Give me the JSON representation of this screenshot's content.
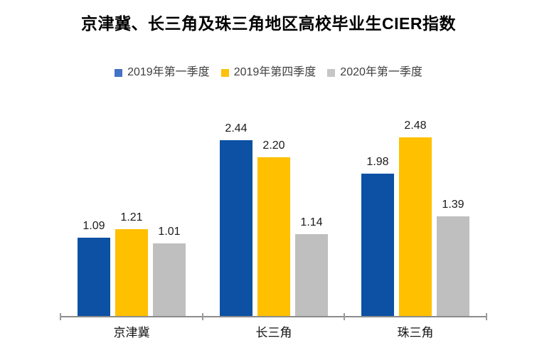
{
  "title": "京津冀、长三角及珠三角地区高校毕业生CIER指数",
  "colors": {
    "background": "#ffffff",
    "title_text": "#000000",
    "legend_text": "#3f3f3f",
    "data_label_text": "#1a1a1a",
    "category_label_text": "#141414",
    "axis_line": "#8c8c8c",
    "series_bars": [
      "#0c51a3",
      "#ffc000",
      "#bfbfbf"
    ],
    "legend_swatches": [
      "#4472c4",
      "#ffc10a",
      "#c6c6c6"
    ]
  },
  "chart_data": {
    "type": "bar",
    "title": "京津冀、长三角及珠三角地区高校毕业生CIER指数",
    "categories": [
      "京津冀",
      "长三角",
      "珠三角"
    ],
    "series": [
      {
        "name": "2019年第一季度",
        "color": "#0c51a3",
        "swatch_color": "#4472c4",
        "values": [
          1.09,
          2.44,
          1.98
        ]
      },
      {
        "name": "2019年第四季度",
        "color": "#ffc000",
        "swatch_color": "#ffc10a",
        "values": [
          1.21,
          2.2,
          2.48
        ]
      },
      {
        "name": "2020年第一季度",
        "color": "#bfbfbf",
        "swatch_color": "#c6c6c6",
        "values": [
          1.01,
          1.14,
          1.39
        ]
      }
    ],
    "xlabel": "",
    "ylabel": "",
    "ylim": [
      0,
      2.8
    ],
    "grid": false,
    "y_axis_visible": false,
    "legend_position": "top",
    "data_labels": true,
    "value_decimals": 2
  }
}
